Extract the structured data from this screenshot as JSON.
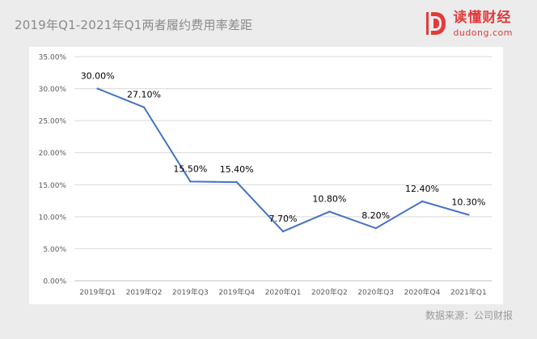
{
  "header": {
    "title": "2019年Q1-2021年Q1两者履约费用率差距"
  },
  "brand": {
    "name": "读懂财经",
    "domain": "dudong.com",
    "color": "#e23b3b",
    "icon": "dudong-logo-icon"
  },
  "footer": {
    "source": "数据来源：公司财报"
  },
  "chart_data": {
    "type": "line",
    "categories": [
      "2019年Q1",
      "2019年Q2",
      "2019年Q3",
      "2019年Q4",
      "2020年Q1",
      "2020年Q2",
      "2020年Q3",
      "2020年Q4",
      "2021年Q1"
    ],
    "series": [
      {
        "values": [
          30.0,
          27.1,
          15.5,
          15.4,
          7.7,
          10.8,
          8.2,
          12.4,
          10.3
        ],
        "labels": [
          "30.00%",
          "27.10%",
          "15.50%",
          "15.40%",
          "7.70%",
          "10.80%",
          "8.20%",
          "12.40%",
          "10.30%"
        ],
        "color": "#4472c4"
      }
    ],
    "y_ticks": [
      "0.00%",
      "5.00%",
      "10.00%",
      "15.00%",
      "20.00%",
      "25.00%",
      "30.00%",
      "35.00%"
    ],
    "ylim": [
      0,
      35
    ],
    "grid": true,
    "legend": "none"
  }
}
